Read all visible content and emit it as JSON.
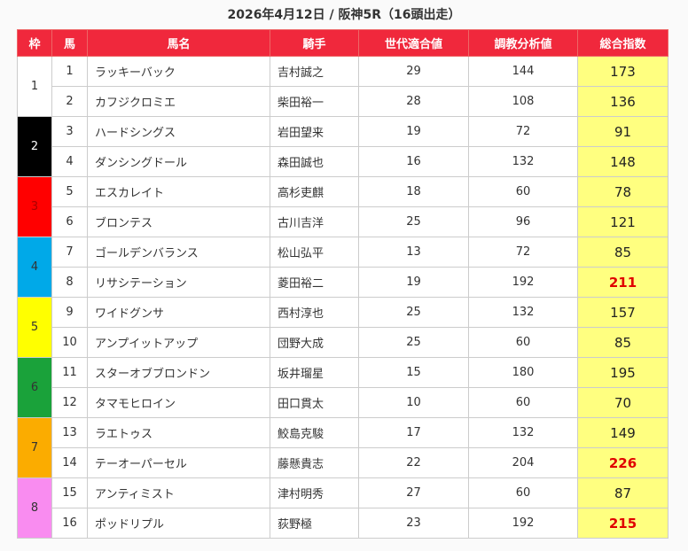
{
  "title": "2026年4月12日 / 阪神5R（16頭出走）",
  "headers": [
    "枠",
    "馬",
    "馬名",
    "騎手",
    "世代適合値",
    "調教分析値",
    "総合指数"
  ],
  "colors": {
    "header": "#f0283c",
    "total_bg": "#ffff80",
    "highlight": "#e00000"
  },
  "frames": [
    {
      "label": "1",
      "bg": "#ffffff",
      "fg": "#333333"
    },
    {
      "label": "2",
      "bg": "#000000",
      "fg": "#ffffff"
    },
    {
      "label": "3",
      "bg": "#ff0000",
      "fg": "#aa0000"
    },
    {
      "label": "4",
      "bg": "#00a9e8",
      "fg": "#333333"
    },
    {
      "label": "5",
      "bg": "#ffff00",
      "fg": "#333333"
    },
    {
      "label": "6",
      "bg": "#1aa23a",
      "fg": "#333333"
    },
    {
      "label": "7",
      "bg": "#fbac00",
      "fg": "#333333"
    },
    {
      "label": "8",
      "bg": "#f98cf0",
      "fg": "#333333"
    }
  ],
  "rows": [
    {
      "no": "1",
      "name": "ラッキーバック",
      "jockey": "吉村誠之",
      "gen": "29",
      "train": "144",
      "total": "173",
      "hi": false
    },
    {
      "no": "2",
      "name": "カフジクロミエ",
      "jockey": "柴田裕一",
      "gen": "28",
      "train": "108",
      "total": "136",
      "hi": false
    },
    {
      "no": "3",
      "name": "ハードシングス",
      "jockey": "岩田望来",
      "gen": "19",
      "train": "72",
      "total": "91",
      "hi": false
    },
    {
      "no": "4",
      "name": "ダンシングドール",
      "jockey": "森田誠也",
      "gen": "16",
      "train": "132",
      "total": "148",
      "hi": false
    },
    {
      "no": "5",
      "name": "エスカレイト",
      "jockey": "高杉吏麒",
      "gen": "18",
      "train": "60",
      "total": "78",
      "hi": false
    },
    {
      "no": "6",
      "name": "ブロンテス",
      "jockey": "古川吉洋",
      "gen": "25",
      "train": "96",
      "total": "121",
      "hi": false
    },
    {
      "no": "7",
      "name": "ゴールデンバランス",
      "jockey": "松山弘平",
      "gen": "13",
      "train": "72",
      "total": "85",
      "hi": false
    },
    {
      "no": "8",
      "name": "リサシテーション",
      "jockey": "菱田裕二",
      "gen": "19",
      "train": "192",
      "total": "211",
      "hi": true
    },
    {
      "no": "9",
      "name": "ワイドグンサ",
      "jockey": "西村淳也",
      "gen": "25",
      "train": "132",
      "total": "157",
      "hi": false
    },
    {
      "no": "10",
      "name": "アンプイットアップ",
      "jockey": "団野大成",
      "gen": "25",
      "train": "60",
      "total": "85",
      "hi": false
    },
    {
      "no": "11",
      "name": "スターオブブロンドン",
      "jockey": "坂井瑠星",
      "gen": "15",
      "train": "180",
      "total": "195",
      "hi": false
    },
    {
      "no": "12",
      "name": "タマモヒロイン",
      "jockey": "田口貫太",
      "gen": "10",
      "train": "60",
      "total": "70",
      "hi": false
    },
    {
      "no": "13",
      "name": "ラエトゥス",
      "jockey": "鮫島克駿",
      "gen": "17",
      "train": "132",
      "total": "149",
      "hi": false
    },
    {
      "no": "14",
      "name": "テーオーパーセル",
      "jockey": "藤懸貴志",
      "gen": "22",
      "train": "204",
      "total": "226",
      "hi": true
    },
    {
      "no": "15",
      "name": "アンティミスト",
      "jockey": "津村明秀",
      "gen": "27",
      "train": "60",
      "total": "87",
      "hi": false
    },
    {
      "no": "16",
      "name": "ポッドリプル",
      "jockey": "荻野極",
      "gen": "23",
      "train": "192",
      "total": "215",
      "hi": true
    }
  ]
}
